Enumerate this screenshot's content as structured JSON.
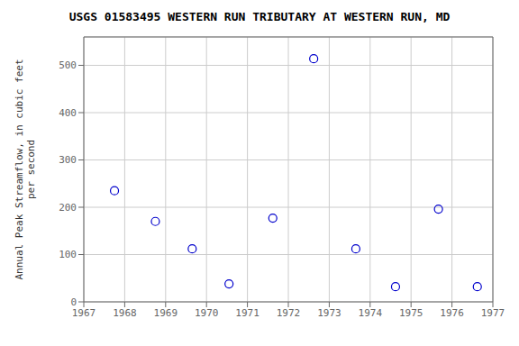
{
  "chart_data": {
    "type": "scatter",
    "title": "USGS 01583495 WESTERN RUN TRIBUTARY AT WESTERN RUN, MD",
    "ylabel": "Annual Peak Streamflow, in cubic feet\nper second",
    "x": [
      1967.75,
      1968.75,
      1969.65,
      1970.55,
      1971.62,
      1972.62,
      1973.65,
      1974.62,
      1975.67,
      1976.62
    ],
    "values": [
      235,
      170,
      112,
      38,
      177,
      514,
      112,
      32,
      196,
      32
    ],
    "xlim": [
      1967,
      1977
    ],
    "ylim": [
      0,
      560
    ],
    "xticks": [
      1967,
      1968,
      1969,
      1970,
      1971,
      1972,
      1973,
      1974,
      1975,
      1976,
      1977
    ],
    "yticks": [
      0,
      100,
      200,
      300,
      400,
      500
    ],
    "color": "#0000cc",
    "marker": "hollow",
    "grid": true
  }
}
